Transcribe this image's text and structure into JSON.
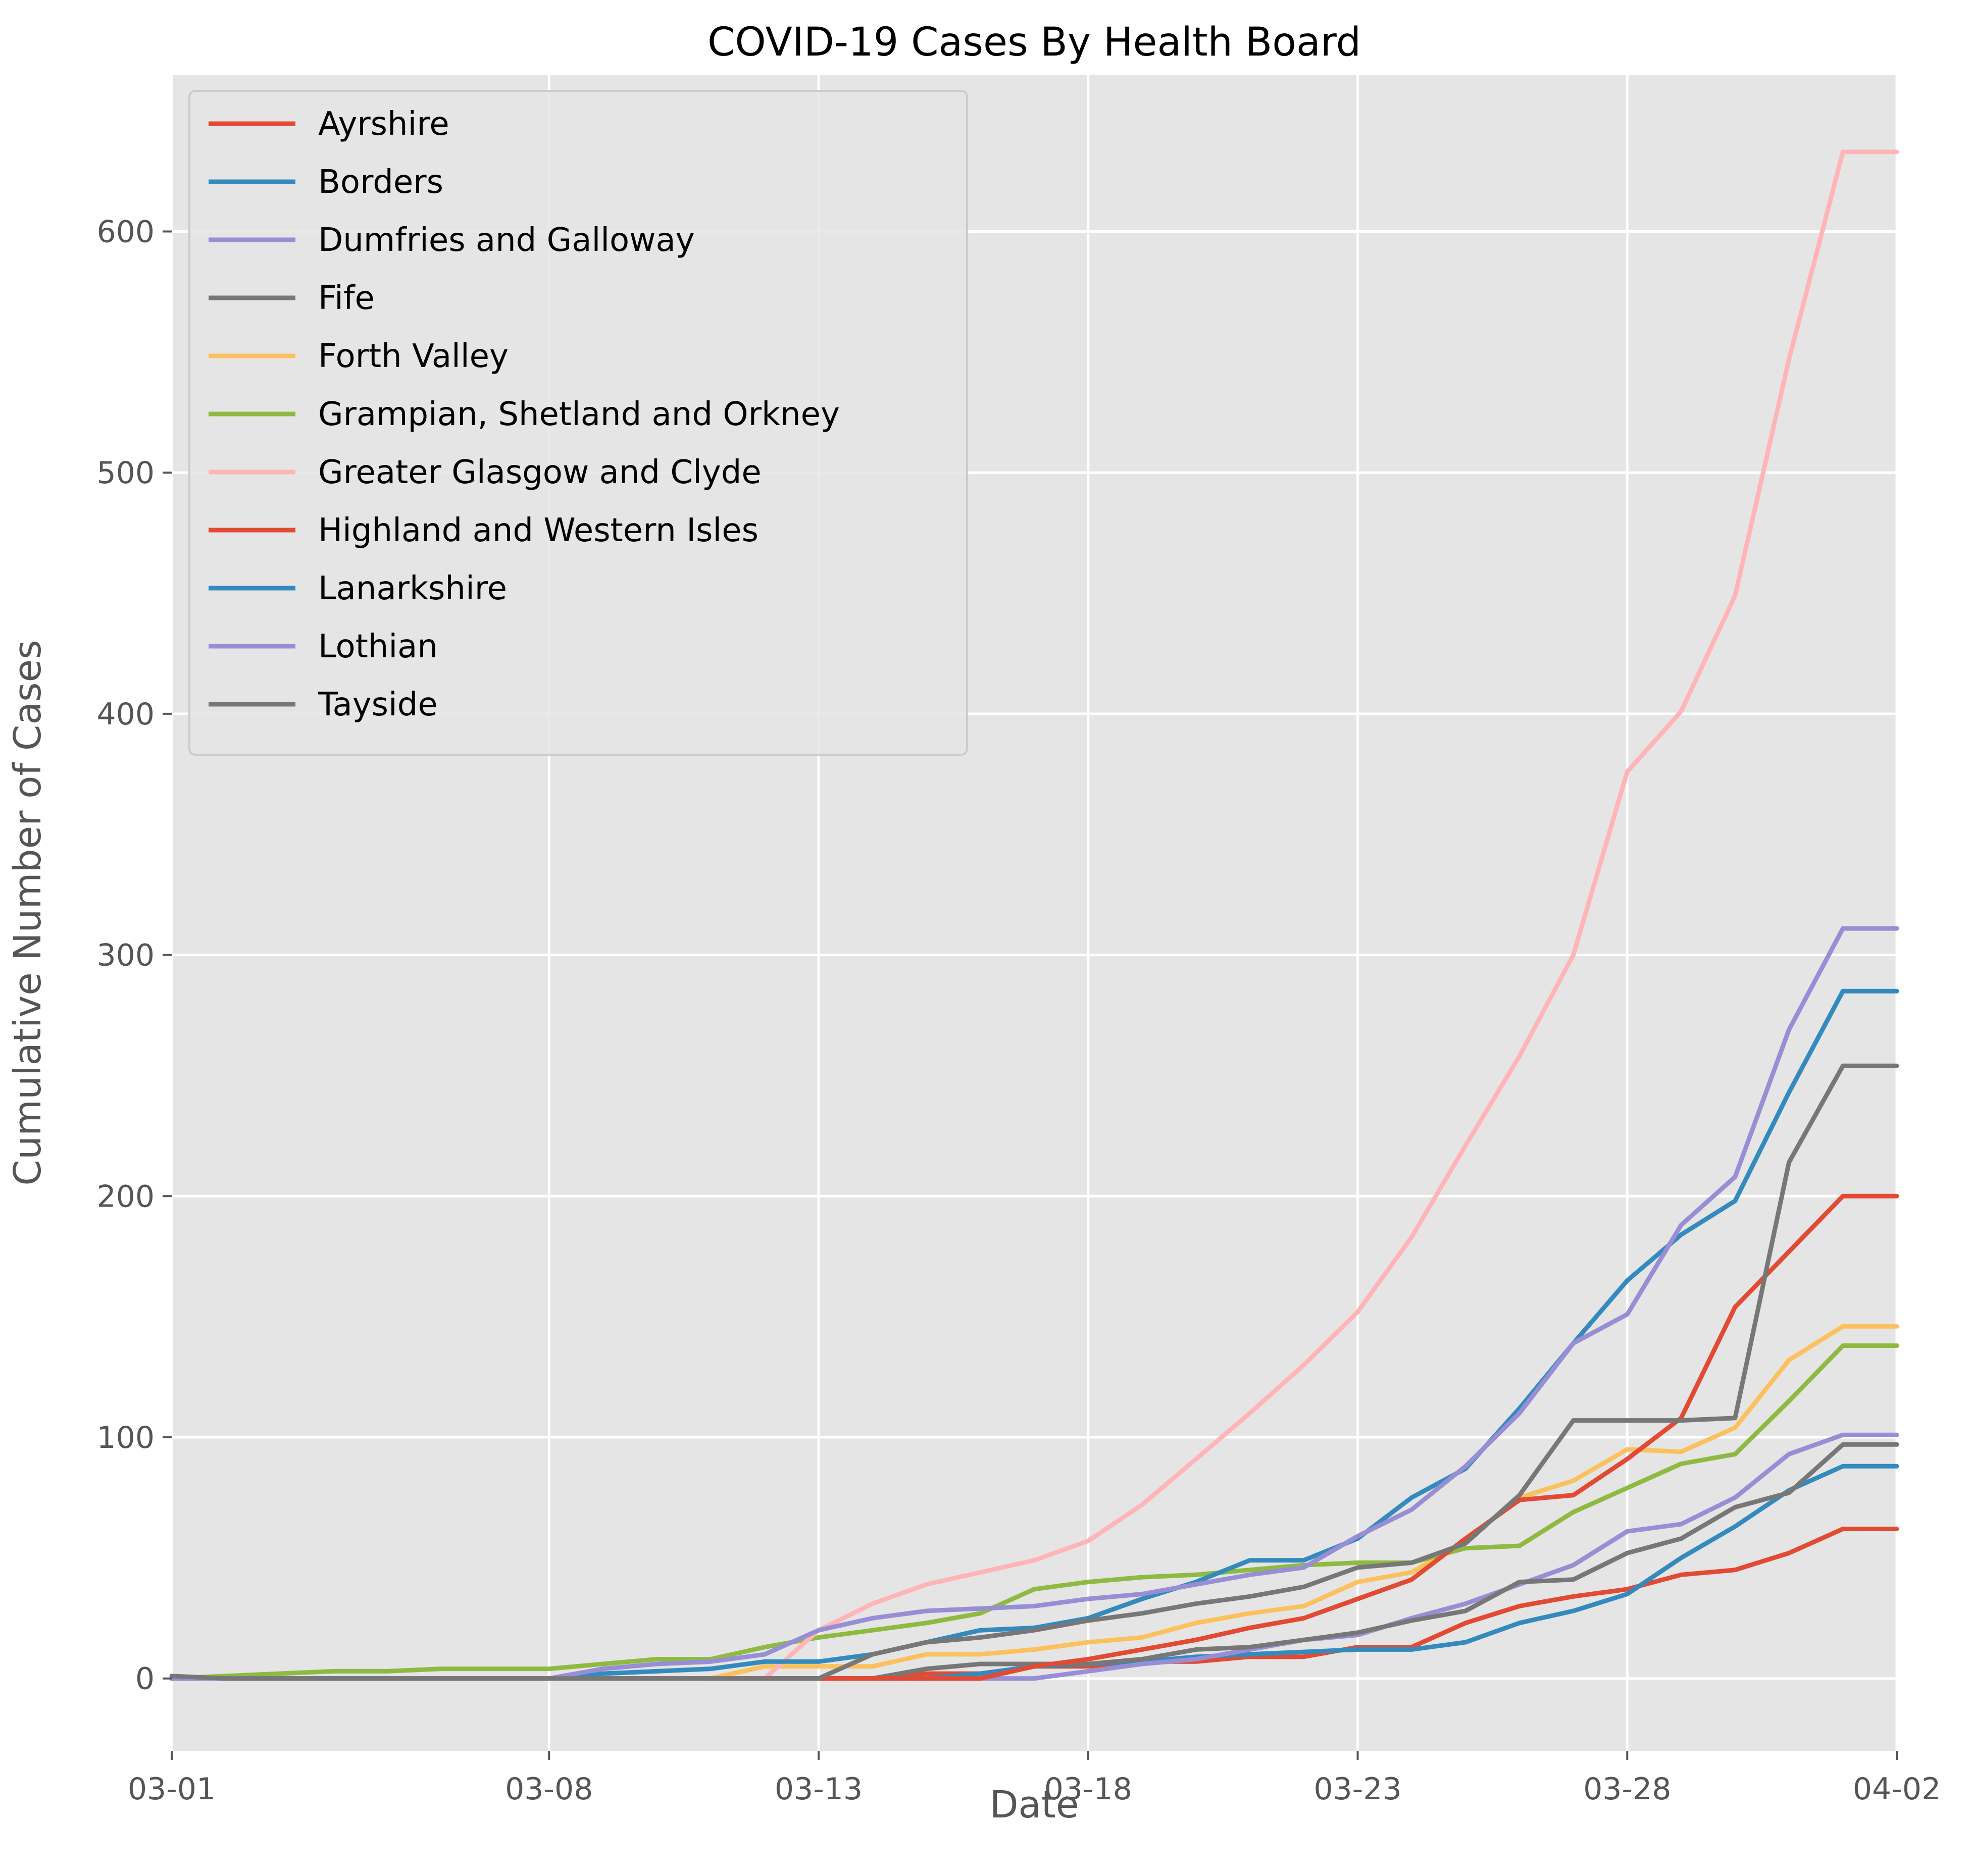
{
  "chart_data": {
    "type": "line",
    "title": "COVID-19 Cases By Health Board",
    "xlabel": "Date",
    "ylabel": "Cumulative Number of Cases",
    "x": [
      "03-01",
      "03-02",
      "03-03",
      "03-04",
      "03-05",
      "03-06",
      "03-07",
      "03-08",
      "03-09",
      "03-10",
      "03-11",
      "03-12",
      "03-13",
      "03-14",
      "03-15",
      "03-16",
      "03-17",
      "03-18",
      "03-19",
      "03-20",
      "03-21",
      "03-22",
      "03-23",
      "03-24",
      "03-25",
      "03-26",
      "03-27",
      "03-28",
      "03-29",
      "03-30",
      "03-31",
      "04-01",
      "04-02"
    ],
    "x_ticks": [
      "03-01",
      "03-08",
      "03-13",
      "03-18",
      "03-23",
      "03-28",
      "04-02"
    ],
    "y_ticks": [
      0,
      100,
      200,
      300,
      400,
      500,
      600
    ],
    "ylim": [
      -30,
      665
    ],
    "grid": true,
    "legend_position": "top-left",
    "series": [
      {
        "name": "Ayrshire",
        "color": "#E24A33",
        "values": [
          0,
          0,
          0,
          0,
          0,
          0,
          0,
          0,
          0,
          0,
          0,
          0,
          0,
          0,
          2,
          2,
          5,
          5,
          7,
          7,
          9,
          9,
          13,
          13,
          23,
          30,
          34,
          37,
          43,
          45,
          52,
          62,
          62
        ]
      },
      {
        "name": "Borders",
        "color": "#348ABD",
        "values": [
          0,
          0,
          0,
          0,
          0,
          0,
          0,
          0,
          0,
          0,
          0,
          0,
          0,
          0,
          0,
          2,
          5,
          6,
          7,
          9,
          10,
          11,
          12,
          12,
          15,
          23,
          28,
          35,
          50,
          63,
          78,
          88,
          88
        ]
      },
      {
        "name": "Dumfries and Galloway",
        "color": "#988ED5",
        "values": [
          0,
          0,
          0,
          0,
          0,
          0,
          0,
          0,
          0,
          0,
          0,
          0,
          0,
          0,
          0,
          0,
          0,
          3,
          6,
          8,
          12,
          16,
          18,
          25,
          31,
          39,
          47,
          61,
          64,
          75,
          93,
          101,
          101
        ]
      },
      {
        "name": "Fife",
        "color": "#777777",
        "values": [
          0,
          0,
          0,
          0,
          0,
          0,
          0,
          0,
          0,
          0,
          0,
          0,
          0,
          0,
          4,
          6,
          6,
          6,
          8,
          12,
          13,
          16,
          19,
          24,
          28,
          40,
          41,
          52,
          58,
          71,
          77,
          97,
          97
        ]
      },
      {
        "name": "Forth Valley",
        "color": "#FBC15E",
        "values": [
          0,
          0,
          0,
          0,
          0,
          0,
          0,
          0,
          0,
          0,
          0,
          5,
          5,
          5,
          10,
          10,
          12,
          15,
          17,
          23,
          27,
          30,
          40,
          44,
          57,
          75,
          82,
          95,
          94,
          104,
          132,
          146,
          146
        ]
      },
      {
        "name": "Grampian, Shetland and Orkney",
        "color": "#8EBA42",
        "values": [
          0,
          1,
          2,
          3,
          3,
          4,
          4,
          4,
          6,
          8,
          8,
          13,
          17,
          20,
          23,
          27,
          37,
          40,
          42,
          43,
          45,
          47,
          48,
          48,
          54,
          55,
          69,
          79,
          89,
          93,
          115,
          138,
          138
        ]
      },
      {
        "name": "Greater Glasgow and Clyde",
        "color": "#FFB5B8",
        "values": [
          0,
          0,
          0,
          0,
          0,
          0,
          0,
          0,
          0,
          0,
          0,
          0,
          20,
          31,
          39,
          44,
          49,
          57,
          72,
          91,
          110,
          130,
          152,
          183,
          221,
          258,
          300,
          376,
          401,
          449,
          547,
          633,
          633
        ]
      },
      {
        "name": "Highland and Western Isles",
        "color": "#E24A33",
        "values": [
          0,
          0,
          0,
          0,
          0,
          0,
          0,
          0,
          0,
          0,
          0,
          0,
          0,
          0,
          0,
          0,
          5,
          8,
          12,
          16,
          21,
          25,
          33,
          41,
          58,
          74,
          76,
          91,
          108,
          154,
          177,
          200,
          200
        ]
      },
      {
        "name": "Lanarkshire",
        "color": "#348ABD",
        "values": [
          0,
          0,
          0,
          0,
          0,
          0,
          0,
          0,
          2,
          3,
          4,
          7,
          7,
          10,
          15,
          20,
          21,
          25,
          33,
          40,
          49,
          49,
          58,
          75,
          87,
          112,
          139,
          165,
          184,
          198,
          243,
          285,
          285
        ]
      },
      {
        "name": "Lothian",
        "color": "#988ED5",
        "values": [
          0,
          0,
          0,
          0,
          0,
          0,
          0,
          0,
          4,
          6,
          7,
          10,
          20,
          25,
          28,
          29,
          30,
          33,
          35,
          39,
          43,
          46,
          59,
          70,
          88,
          110,
          139,
          151,
          188,
          208,
          269,
          311,
          311
        ]
      },
      {
        "name": "Tayside",
        "color": "#777777",
        "values": [
          1,
          0,
          0,
          0,
          0,
          0,
          0,
          0,
          0,
          0,
          0,
          0,
          0,
          10,
          15,
          17,
          20,
          24,
          27,
          31,
          34,
          38,
          46,
          48,
          56,
          76,
          107,
          107,
          107,
          108,
          214,
          254,
          254
        ]
      }
    ]
  }
}
